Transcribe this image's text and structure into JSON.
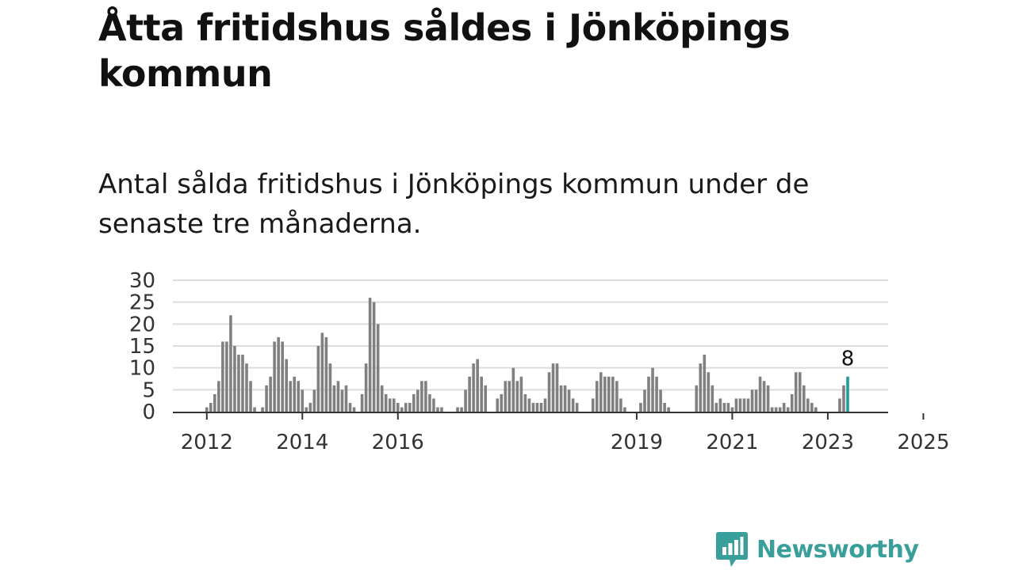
{
  "title": "Åtta fritidshus såldes i Jönköpings kommun",
  "subtitle": "Antal sålda fritidshus i Jönköpings kommun under de senaste tre månaderna.",
  "brand": {
    "name": "Newsworthy",
    "icon": "newsworthy-logo-icon",
    "color": "#3a9e9b"
  },
  "colors": {
    "bar": "#808080",
    "highlight": "#1a9e9a",
    "grid": "#dddddd",
    "axis": "#333333"
  },
  "chart_data": {
    "type": "bar",
    "ylim": [
      0,
      30
    ],
    "yticks": [
      "0",
      "5",
      "10",
      "15",
      "20",
      "25",
      "30"
    ],
    "xticks": [
      "2012",
      "2014",
      "2016",
      "2019",
      "2021",
      "2023",
      "2025"
    ],
    "highlight_label": "8",
    "grid": true,
    "values": [
      1,
      2,
      4,
      7,
      16,
      16,
      22,
      15,
      13,
      13,
      11,
      7,
      1,
      0,
      1,
      6,
      8,
      16,
      17,
      16,
      12,
      7,
      8,
      7,
      5,
      1,
      2,
      5,
      15,
      18,
      17,
      11,
      6,
      7,
      5,
      6,
      2,
      1,
      0,
      4,
      11,
      26,
      25,
      20,
      6,
      4,
      3,
      3,
      2,
      1,
      2,
      2,
      4,
      5,
      7,
      7,
      4,
      3,
      1,
      1,
      0,
      0,
      0,
      1,
      1,
      5,
      8,
      11,
      12,
      8,
      6,
      0,
      0,
      3,
      4,
      7,
      7,
      10,
      7,
      8,
      4,
      3,
      2,
      2,
      2,
      3,
      9,
      11,
      11,
      6,
      6,
      5,
      3,
      2,
      0,
      0,
      0,
      3,
      7,
      9,
      8,
      8,
      8,
      7,
      3,
      1,
      0,
      0,
      0,
      2,
      5,
      8,
      10,
      8,
      5,
      2,
      1,
      0,
      0,
      0,
      0,
      0,
      0,
      6,
      11,
      13,
      9,
      6,
      2,
      3,
      2,
      2,
      1,
      3,
      3,
      3,
      3,
      5,
      5,
      8,
      7,
      6,
      1,
      1,
      1,
      2,
      1,
      4,
      9,
      9,
      6,
      3,
      2,
      1,
      0,
      0,
      0,
      0,
      0,
      3,
      6,
      8
    ]
  }
}
